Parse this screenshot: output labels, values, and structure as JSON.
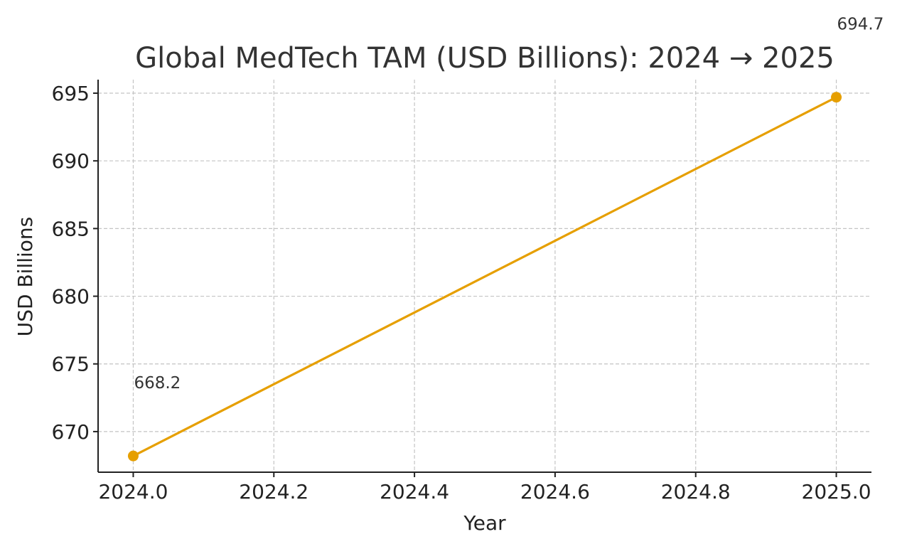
{
  "chart_data": {
    "type": "line",
    "title": "Global MedTech TAM (USD Billions): 2024 → 2025",
    "xlabel": "Year",
    "ylabel": "USD Billions",
    "xlim": [
      2023.95,
      2025.05
    ],
    "ylim": [
      667.0,
      696.0
    ],
    "x_ticks": [
      2024.0,
      2024.2,
      2024.4,
      2024.6,
      2024.8,
      2025.0
    ],
    "x_tick_labels": [
      "2024.0",
      "2024.2",
      "2024.4",
      "2024.6",
      "2024.8",
      "2025.0"
    ],
    "y_ticks": [
      670,
      675,
      680,
      685,
      690,
      695
    ],
    "y_tick_labels": [
      "670",
      "675",
      "680",
      "685",
      "690",
      "695"
    ],
    "grid": true,
    "series": [
      {
        "color": "#e69f00",
        "marker": "circle",
        "x": [
          2024,
          2025
        ],
        "y": [
          668.2,
          694.7
        ]
      }
    ],
    "annotations": [
      {
        "x": 2024,
        "y": 668.2,
        "text": "668.2"
      },
      {
        "x": 2025,
        "y": 694.7,
        "text": "694.7"
      }
    ]
  }
}
